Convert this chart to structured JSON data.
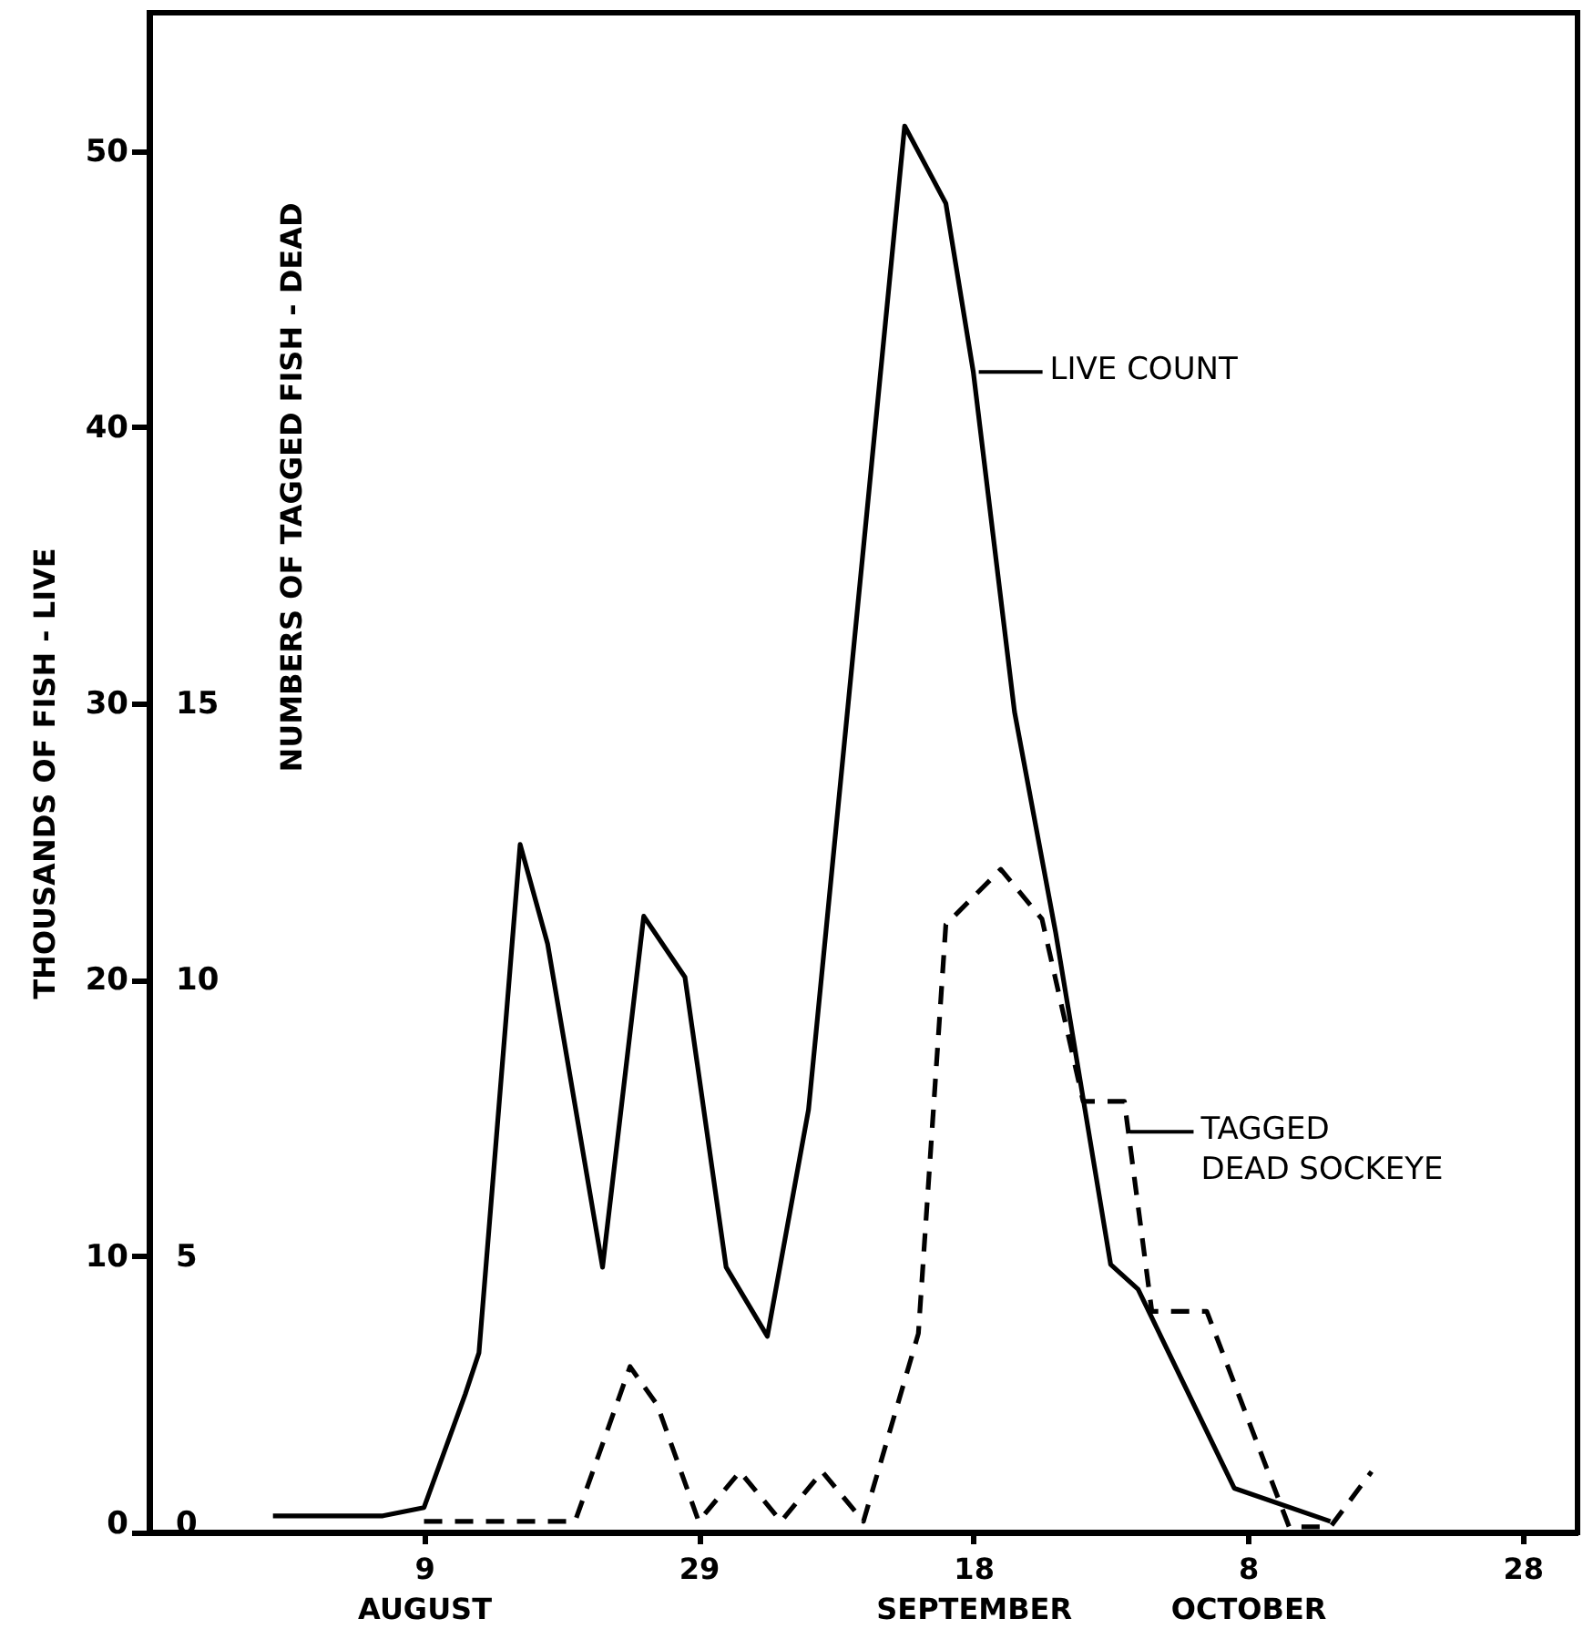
{
  "chart_data": {
    "type": "line",
    "ylabel": "THOUSANDS OF FISH - LIVE",
    "y2label": "NUMBERS OF TAGGED FISH - DEAD",
    "xlim": [
      "--07-20",
      "--11-01"
    ],
    "xticks": [
      {
        "value": "--08-09",
        "label": "9\nAUGUST"
      },
      {
        "value": "--08-29",
        "label": "29"
      },
      {
        "value": "--09-18",
        "label": "18\nSEPTEMBER"
      },
      {
        "value": "--10-08",
        "label": "8\nOCTOBER"
      },
      {
        "value": "--10-28",
        "label": "28"
      }
    ],
    "ylim": [
      0,
      55
    ],
    "yticks": [
      0,
      10,
      20,
      30,
      40,
      50
    ],
    "y2lim": [
      0,
      27.5
    ],
    "y2ticks": [
      0,
      5,
      10,
      15
    ],
    "series": [
      {
        "color": "#000000",
        "line_style": "solid",
        "x": [
          "--07-29",
          "--08-06",
          "--08-09",
          "--08-12",
          "--08-13",
          "--08-16",
          "--08-18",
          "--08-22",
          "--08-25",
          "--08-28",
          "--08-31",
          "--09-03",
          "--09-06",
          "--09-13",
          "--09-16",
          "--09-18",
          "--09-21",
          "--09-24",
          "--09-28",
          "--09-30",
          "--10-07",
          "--10-14"
        ],
        "values": [
          0.6,
          0.6,
          0.9,
          5,
          6.5,
          24.9,
          21.3,
          9.6,
          22.3,
          20.1,
          9.6,
          7.1,
          15.3,
          50.9,
          48.1,
          42,
          29.7,
          21.7,
          9.7,
          8.8,
          1.6,
          0.4
        ]
      },
      {
        "color": "#000000",
        "line_style": "dashed",
        "axis": "y2",
        "x": [
          "--08-09",
          "--08-20",
          "--08-24",
          "--08-26",
          "--08-29",
          "--09-01",
          "--09-04",
          "--09-07",
          "--09-10",
          "--09-14",
          "--09-16",
          "--09-20",
          "--09-23",
          "--09-26",
          "--09-29",
          "--10-01",
          "--10-05",
          "--10-11",
          "--10-14",
          "--10-17"
        ],
        "values": [
          0.2,
          0.2,
          3.0,
          2.3,
          0.2,
          1.1,
          0.2,
          1.1,
          0.2,
          3.6,
          11.0,
          12.0,
          11.1,
          7.8,
          7.8,
          4.0,
          4.0,
          0.1,
          0.1,
          1.1
        ]
      }
    ],
    "annotations": [
      {
        "text": "LIVE COUNT",
        "x": "--09-18",
        "y": 42
      },
      {
        "text": "TAGGED\nDEAD SOCKEYE",
        "x": "--09-29",
        "y": 14.5
      }
    ]
  }
}
